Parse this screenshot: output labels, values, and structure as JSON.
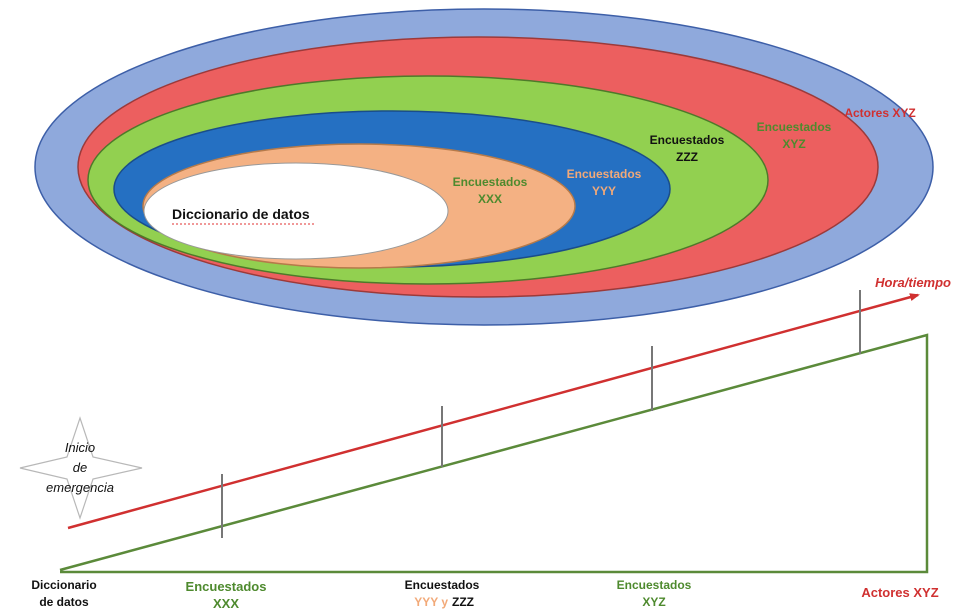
{
  "colors": {
    "ring_outer": "#8FA9DC",
    "ring_red": "#EC5F5F",
    "ring_green": "#92D050",
    "ring_blue": "#2570C2",
    "ring_peach": "#F4B183",
    "ring_core": "#FFFFFF",
    "timeline_red": "#D03030",
    "timeline_green": "#5B8A3A",
    "tick_gray": "#777777",
    "text_dark": "#111111",
    "text_green": "#4E8A2E",
    "text_orange": "#F2A978",
    "text_red": "#D03030",
    "text_white": "#FFFFFF",
    "star_stroke": "#B8B8B8",
    "squiggle": "#E03030"
  },
  "nested": {
    "core": "Diccionario de datos",
    "peach_l1": "Encuestados",
    "peach_l2": "XXX",
    "blue_l1": "Encuestados",
    "blue_l2": "YYY",
    "green_l1": "Encuestados",
    "green_l2": "ZZZ",
    "red_l1": "Encuestados",
    "red_l2": "XYZ",
    "outer": "Actores XYZ"
  },
  "timeline": {
    "axis_label": "Hora/tiempo",
    "start_l1": "Inicio",
    "start_l2": "de",
    "start_l3": "emergencia",
    "stages": {
      "s1_l1": "Diccionario",
      "s1_l2": "de datos",
      "s2_l1": "Encuestados",
      "s2_l2": "XXX",
      "s3_l1": "Encuestados",
      "s3_l2a": "YYY y",
      "s3_l2b": "ZZZ",
      "s4_l1": "Encuestados",
      "s4_l2": "XYZ",
      "s5": "Actores XYZ"
    }
  },
  "icons": {
    "start_marker": "four-point-star-icon",
    "time_arrow": "arrow-right-icon"
  }
}
